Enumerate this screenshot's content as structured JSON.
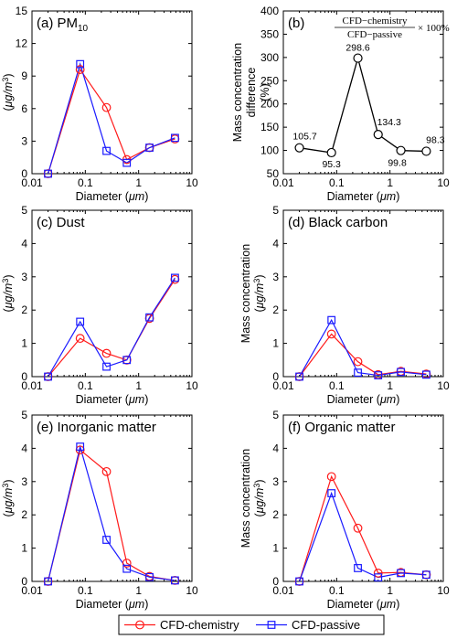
{
  "colors": {
    "chemistry": "#ff1a1a",
    "passive": "#1a1aff",
    "difference": "#000000"
  },
  "legend": {
    "chemistry": "CFD-chemistry",
    "passive": "CFD-passive"
  },
  "axis_text": {
    "xlabel_main": "Diameter (",
    "xlabel_unit": "μm",
    "xlabel_close": ")",
    "ylabel_line1": "Mass concentration",
    "ylabel_line2_open": "(",
    "ylabel_line2_unit": "μg/m",
    "ylabel_line2_exp": "3",
    "ylabel_line2_close": ")",
    "diff_line1": "Mass concentration",
    "diff_line2": "difference",
    "diff_line3": "(%)"
  },
  "formula": {
    "numerator": "CFD−chemistry",
    "denominator": "CFD−passive",
    "suffix": "× 100%"
  },
  "chart_data": [
    {
      "id": "pm10",
      "type": "line",
      "label": "(a) PM",
      "label_sub": "10",
      "x": [
        0.02,
        0.08,
        0.25,
        0.6,
        1.6,
        4.8
      ],
      "xscale": "log",
      "xlim": [
        0.01,
        10
      ],
      "xticks": [
        "0.01",
        "0.1",
        "1",
        "10"
      ],
      "ylim": [
        0,
        15
      ],
      "yticks": [
        0,
        3,
        6,
        9,
        12,
        15
      ],
      "series": [
        {
          "name": "CFD-chemistry",
          "values": [
            0,
            9.6,
            6.1,
            1.3,
            2.4,
            3.2
          ]
        },
        {
          "name": "CFD-passive",
          "values": [
            0,
            10.1,
            2.1,
            1.0,
            2.4,
            3.3
          ]
        }
      ]
    },
    {
      "id": "difference",
      "type": "line",
      "label": "(b)",
      "x": [
        0.02,
        0.08,
        0.25,
        0.6,
        1.6,
        4.8
      ],
      "xscale": "log",
      "xlim": [
        0.01,
        10
      ],
      "xticks": [
        "0.01",
        "0.1",
        "1",
        "10"
      ],
      "ylim": [
        50,
        400
      ],
      "yticks": [
        50,
        100,
        150,
        200,
        250,
        300,
        350,
        400
      ],
      "series": [
        {
          "values": [
            105.7,
            95.3,
            298.6,
            134.3,
            99.8,
            98.3
          ]
        }
      ],
      "data_labels": [
        "105.7",
        "95.3",
        "298.6",
        "134.3",
        "99.8",
        "98.3"
      ]
    },
    {
      "id": "dust",
      "type": "line",
      "label": "(c) Dust",
      "x": [
        0.02,
        0.08,
        0.25,
        0.6,
        1.6,
        4.8
      ],
      "xscale": "log",
      "xlim": [
        0.01,
        10
      ],
      "xticks": [
        "0.01",
        "0.1",
        "1",
        "10"
      ],
      "ylim": [
        0,
        5
      ],
      "yticks": [
        0,
        1,
        2,
        3,
        4,
        5
      ],
      "series": [
        {
          "name": "CFD-chemistry",
          "values": [
            0,
            1.15,
            0.7,
            0.5,
            1.75,
            2.92
          ]
        },
        {
          "name": "CFD-passive",
          "values": [
            0,
            1.65,
            0.3,
            0.5,
            1.78,
            2.97
          ]
        }
      ]
    },
    {
      "id": "black_carbon",
      "type": "line",
      "label": "(d) Black carbon",
      "x": [
        0.02,
        0.08,
        0.25,
        0.6,
        1.6,
        4.8
      ],
      "xscale": "log",
      "xlim": [
        0.01,
        10
      ],
      "xticks": [
        "0.01",
        "0.1",
        "1",
        "10"
      ],
      "ylim": [
        0,
        5
      ],
      "yticks": [
        0,
        1,
        2,
        3,
        4,
        5
      ],
      "series": [
        {
          "name": "CFD-chemistry",
          "values": [
            0,
            1.28,
            0.45,
            0.06,
            0.16,
            0.08
          ]
        },
        {
          "name": "CFD-passive",
          "values": [
            0,
            1.7,
            0.12,
            0.04,
            0.14,
            0.06
          ]
        }
      ]
    },
    {
      "id": "inorganic",
      "type": "line",
      "label": "(e) Inorganic matter",
      "x": [
        0.02,
        0.08,
        0.25,
        0.6,
        1.6,
        4.8
      ],
      "xscale": "log",
      "xlim": [
        0.01,
        10
      ],
      "xticks": [
        "0.01",
        "0.1",
        "1",
        "10"
      ],
      "ylim": [
        0,
        5
      ],
      "yticks": [
        0,
        1,
        2,
        3,
        4,
        5
      ],
      "series": [
        {
          "name": "CFD-chemistry",
          "values": [
            0,
            3.95,
            3.3,
            0.55,
            0.15,
            0.03
          ]
        },
        {
          "name": "CFD-passive",
          "values": [
            0,
            4.05,
            1.25,
            0.38,
            0.13,
            0.03
          ]
        }
      ]
    },
    {
      "id": "organic",
      "type": "line",
      "label": "(f) Organic matter",
      "x": [
        0.02,
        0.08,
        0.25,
        0.6,
        1.6,
        4.8
      ],
      "xscale": "log",
      "xlim": [
        0.01,
        10
      ],
      "xticks": [
        "0.01",
        "0.1",
        "1",
        "10"
      ],
      "ylim": [
        0,
        5
      ],
      "yticks": [
        0,
        1,
        2,
        3,
        4,
        5
      ],
      "series": [
        {
          "name": "CFD-chemistry",
          "values": [
            0,
            3.15,
            1.6,
            0.25,
            0.27,
            0.2
          ]
        },
        {
          "name": "CFD-passive",
          "values": [
            0,
            2.65,
            0.4,
            0.12,
            0.25,
            0.2
          ]
        }
      ]
    }
  ]
}
